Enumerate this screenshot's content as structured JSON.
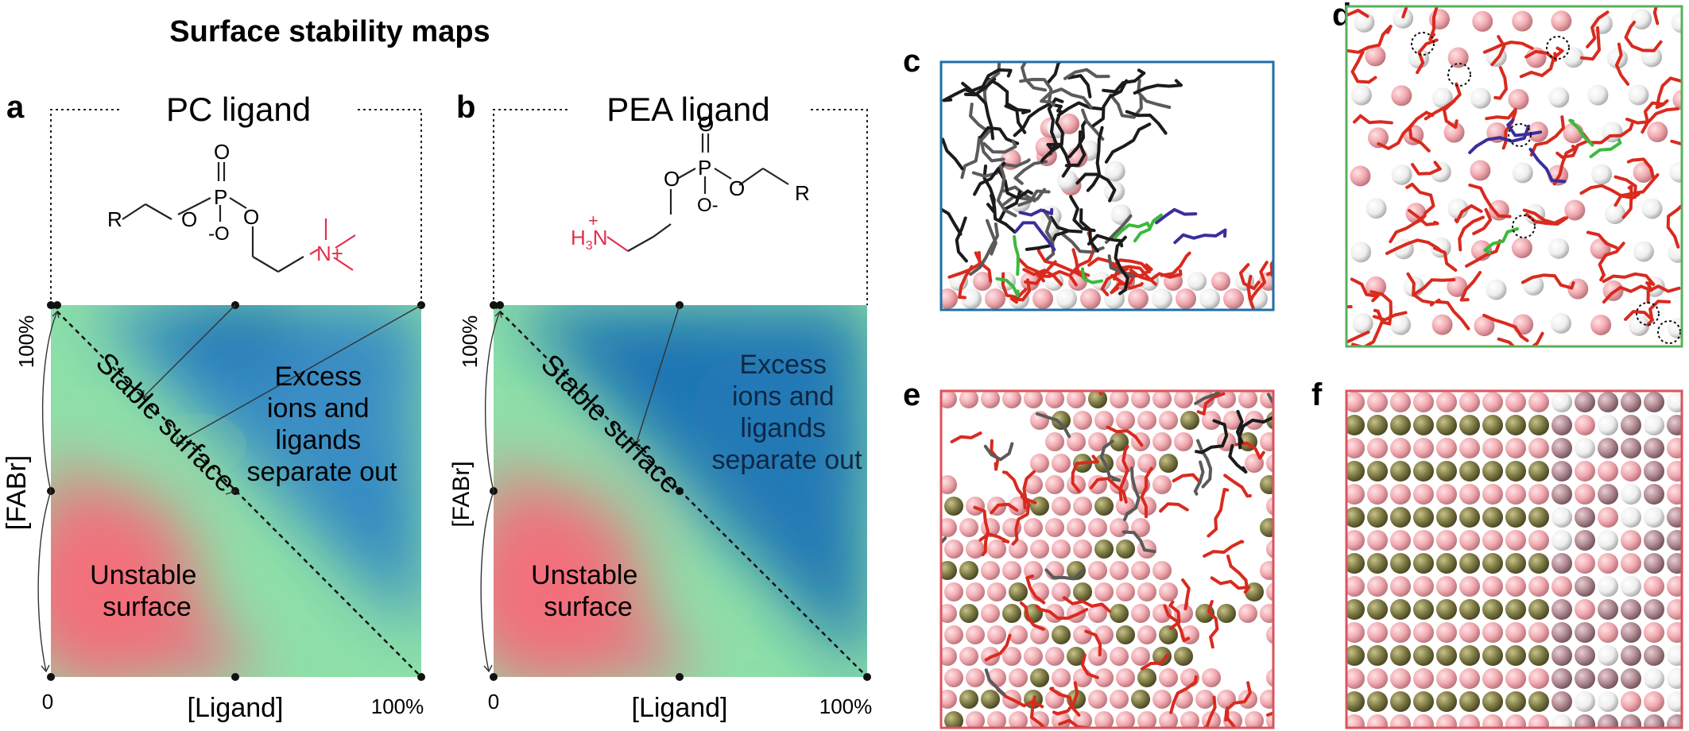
{
  "title": "Surface stability maps",
  "panels": {
    "a": {
      "letter": "a",
      "ligand_title": "PC ligand",
      "region_stable": "Stable surface",
      "region_unstable": [
        "Unstable",
        "surface"
      ],
      "region_excess": [
        "Excess",
        "ions and",
        "ligands",
        "separate out"
      ],
      "y_label": "[FABr]",
      "y_tick_top": "100%",
      "x_label": "[Ligand]",
      "x_tick_left": "0",
      "x_tick_right": "100%",
      "molecule": {
        "r": "R",
        "o1": "O",
        "o2": "O",
        "o_top": "O",
        "o_minus": "-O",
        "p": "P",
        "n_plus": "N+"
      }
    },
    "b": {
      "letter": "b",
      "ligand_title": "PEA ligand",
      "region_stable": "Stable surface",
      "region_unstable": [
        "Unstable",
        "surface"
      ],
      "region_excess": [
        "Excess",
        "ions and",
        "ligands",
        "separate out"
      ],
      "y_label": "[FABr]",
      "y_tick_top": "100%",
      "x_label": "[Ligand]",
      "x_tick_left": "0",
      "x_tick_right": "100%",
      "molecule": {
        "r": "R",
        "o1": "O",
        "o2": "O",
        "o_top": "O",
        "o_minus": "O-",
        "p": "P",
        "h3n": "H3N+"
      }
    },
    "c": {
      "letter": "c",
      "frame_color": "#1f6fa8"
    },
    "d": {
      "letter": "d",
      "frame_color": "#58b05a"
    },
    "e": {
      "letter": "e",
      "frame_color": "#d9545e"
    },
    "f": {
      "letter": "f",
      "frame_color": "#d9545e"
    }
  },
  "colors": {
    "stable": "#8ee0a8",
    "unstable": "#f06a80",
    "excess": "#2d7fbf",
    "ion_pink": "#f0aab0",
    "ion_white": "#f2f2f2",
    "ion_olive": "#7e7a45",
    "ion_mauve": "#b08a92",
    "ligand_red": "#d92a1e",
    "ligand_black": "#1b1b1b",
    "ligand_blue": "#3a2e9c",
    "ligand_green": "#3cb93c",
    "ligand_gray": "#5a5a5a"
  },
  "icons": [
    "dashed-circle-icon"
  ]
}
